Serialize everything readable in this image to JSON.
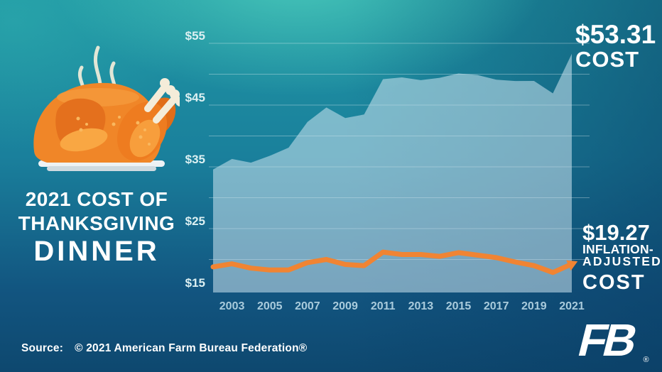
{
  "infographic": {
    "title_line1": "2021 COST OF",
    "title_line2": "THANKSGIVING",
    "title_line3": "DINNER"
  },
  "callout_cost": {
    "value": "$53.31",
    "label": "COST"
  },
  "callout_adjusted": {
    "value": "$19.27",
    "label_line1": "INFLATION-",
    "label_line2": "ADJUSTED",
    "label_line3": "COST"
  },
  "footer": {
    "source_prefix": "Source:",
    "source_text": "© 2021 American Farm Bureau Federation®"
  },
  "logo": {
    "text": "FB",
    "registered": "®"
  },
  "colors": {
    "accent_orange": "#f08433",
    "area_fill": "rgba(206,229,240,0.55)",
    "gridline": "rgba(255,255,255,0.32)",
    "year_label": "#a9cbdc",
    "dollar_label": "#dcf0f2",
    "background_teal": "#2aa7a4",
    "background_navy": "#0e486f"
  },
  "chart_data": {
    "type": "area",
    "title": "2021 Cost of Thanksgiving Dinner",
    "x": [
      2002,
      2003,
      2004,
      2005,
      2006,
      2007,
      2008,
      2009,
      2010,
      2011,
      2012,
      2013,
      2014,
      2015,
      2016,
      2017,
      2018,
      2019,
      2020,
      2021
    ],
    "series": [
      {
        "name": "Cost",
        "type": "area",
        "values": [
          34.56,
          36.28,
          35.68,
          36.78,
          38.1,
          42.26,
          44.61,
          42.91,
          43.47,
          49.2,
          49.48,
          49.04,
          49.41,
          50.11,
          49.87,
          49.12,
          48.9,
          48.91,
          46.9,
          53.31
        ]
      },
      {
        "name": "Inflation-adjusted cost",
        "type": "line",
        "values": [
          18.8,
          19.3,
          18.6,
          18.3,
          18.3,
          19.5,
          20.0,
          19.2,
          19.0,
          21.2,
          20.8,
          20.8,
          20.5,
          21.1,
          20.7,
          20.3,
          19.6,
          19.0,
          17.9,
          19.27
        ]
      }
    ],
    "annotations": [
      {
        "text": "$53.31 COST",
        "series": "Cost",
        "year": 2021
      },
      {
        "text": "$19.27 INFLATION-ADJUSTED COST",
        "series": "Inflation-adjusted cost",
        "year": 2021
      }
    ],
    "xlabel": "",
    "ylabel": "",
    "ylim": [
      15,
      55
    ],
    "yticks": [
      15,
      25,
      35,
      45,
      55
    ],
    "ytick_labels": [
      "$15",
      "$25",
      "$35",
      "$45",
      "$55"
    ],
    "xticks": [
      2003,
      2005,
      2007,
      2009,
      2011,
      2013,
      2015,
      2017,
      2019,
      2021
    ],
    "grid": true,
    "grid_step": 5,
    "legend": "none"
  }
}
